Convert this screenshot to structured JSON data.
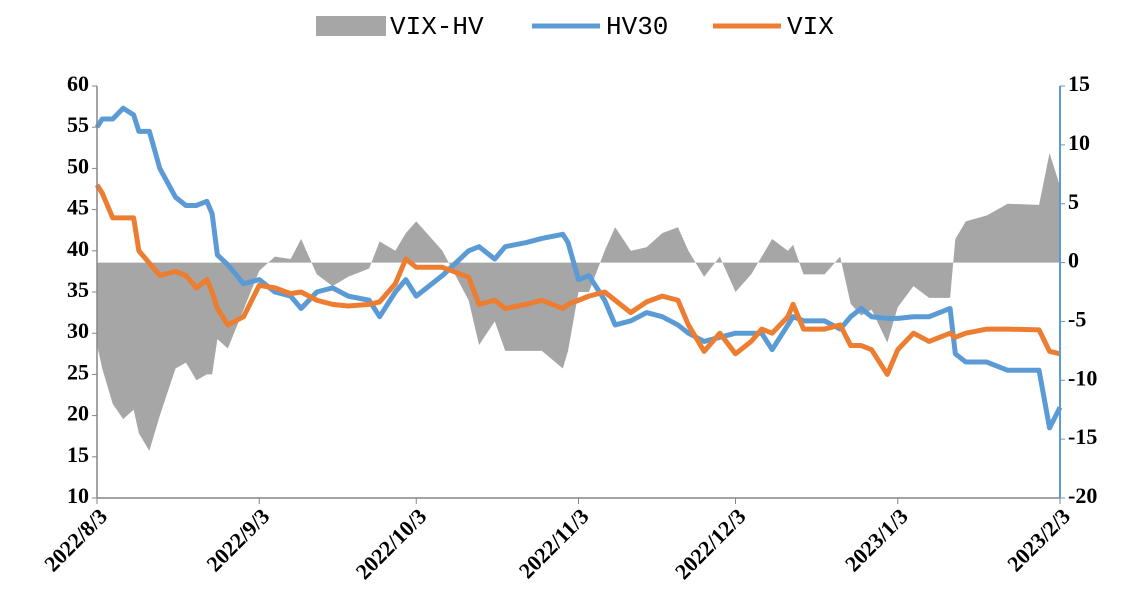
{
  "chart_data": {
    "type": "line",
    "x": [
      "2022/8/3",
      "2022/8/4",
      "2022/8/6",
      "2022/8/8",
      "2022/8/10",
      "2022/8/11",
      "2022/8/13",
      "2022/8/15",
      "2022/8/18",
      "2022/8/20",
      "2022/8/22",
      "2022/8/24",
      "2022/8/25",
      "2022/8/26",
      "2022/8/28",
      "2022/8/31",
      "2022/9/3",
      "2022/9/6",
      "2022/9/9",
      "2022/9/11",
      "2022/9/14",
      "2022/9/17",
      "2022/9/20",
      "2022/9/24",
      "2022/9/26",
      "2022/9/29",
      "2022/10/1",
      "2022/10/3",
      "2022/10/8",
      "2022/10/13",
      "2022/10/15",
      "2022/10/18",
      "2022/10/20",
      "2022/10/24",
      "2022/10/27",
      "2022/10/31",
      "2022/11/1",
      "2022/11/3",
      "2022/11/5",
      "2022/11/8",
      "2022/11/10",
      "2022/11/13",
      "2022/11/16",
      "2022/11/19",
      "2022/11/22",
      "2022/11/24",
      "2022/11/27",
      "2022/11/30",
      "2022/12/3",
      "2022/12/6",
      "2022/12/8",
      "2022/12/10",
      "2022/12/13",
      "2022/12/14",
      "2022/12/16",
      "2022/12/20",
      "2022/12/23",
      "2022/12/25",
      "2022/12/27",
      "2022/12/29",
      "2023/1/1",
      "2023/1/3",
      "2023/1/6",
      "2023/1/9",
      "2023/1/13",
      "2023/1/14",
      "2023/1/16",
      "2023/1/20",
      "2023/1/24",
      "2023/1/30",
      "2023/2/1",
      "2023/2/3"
    ],
    "series": [
      {
        "name": "VIX-HV",
        "type": "area",
        "axis": "y2",
        "color": "#a6a6a6",
        "values": [
          -7,
          -9,
          -12,
          -13.3,
          -12.5,
          -14.5,
          -16,
          -13,
          -9,
          -8.5,
          -10,
          -9.5,
          -9.5,
          -6.5,
          -7.3,
          -4,
          -0.7,
          0.5,
          0.3,
          2,
          -1,
          -2,
          -1.2,
          -0.5,
          1.8,
          1,
          2.5,
          3.5,
          1,
          -3.2,
          -7,
          -5,
          -7.5,
          -7.5,
          -7.5,
          -9,
          -7.5,
          -2.5,
          -2.5,
          1,
          3,
          1,
          1.3,
          2.5,
          3,
          1,
          -1.2,
          0.5,
          -2.5,
          -1,
          0.5,
          2,
          1,
          1.5,
          -1,
          -1,
          0.5,
          -3.5,
          -4.5,
          -4,
          -6.8,
          -3.8,
          -2,
          -3,
          -3,
          2,
          3.5,
          4,
          5,
          4.9,
          9.3,
          6.5
        ]
      },
      {
        "name": "HV30",
        "type": "line",
        "color": "#5b9bd5",
        "values": [
          55,
          56,
          56,
          57.3,
          56.5,
          54.5,
          54.5,
          50,
          46.5,
          45.5,
          45.5,
          46,
          44.5,
          39.5,
          38.3,
          36,
          36.5,
          35,
          34.5,
          33,
          35,
          35.5,
          34.5,
          34,
          32,
          35,
          36.5,
          34.5,
          37,
          40,
          40.5,
          39,
          40.5,
          41,
          41.5,
          42,
          41,
          36.5,
          37,
          34,
          31,
          31.5,
          32.5,
          32,
          31,
          30,
          29,
          29.5,
          30,
          30,
          30,
          28,
          31,
          32,
          31.5,
          31.5,
          30.5,
          32,
          33,
          32,
          31.8,
          31.8,
          32,
          32,
          33,
          27.5,
          26.5,
          26.5,
          25.5,
          25.5,
          18.5,
          21
        ]
      },
      {
        "name": "VIX",
        "type": "line",
        "color": "#ed7d31",
        "values": [
          48,
          47,
          44,
          44,
          44,
          40,
          38.5,
          37,
          37.5,
          37,
          35.5,
          36.5,
          35,
          33,
          31,
          32,
          35.8,
          35.5,
          34.8,
          35,
          34,
          33.5,
          33.3,
          33.5,
          33.8,
          36,
          39,
          38,
          38,
          36.8,
          33.5,
          34,
          33,
          33.5,
          34,
          33,
          33.5,
          34,
          34.5,
          35,
          34,
          32.5,
          33.8,
          34.5,
          34,
          31,
          27.8,
          30,
          27.5,
          29,
          30.5,
          30,
          32,
          33.5,
          30.5,
          30.5,
          31,
          28.5,
          28.5,
          28,
          25,
          28,
          30,
          29,
          30,
          29.5,
          30,
          30.5,
          30.5,
          30.4,
          27.8,
          27.5
        ]
      }
    ],
    "xlim": [
      "2022/8/3",
      "2023/2/3"
    ],
    "xticks": [
      "2022/8/3",
      "2022/9/3",
      "2022/10/3",
      "2022/11/3",
      "2022/12/3",
      "2023/1/3",
      "2023/2/3"
    ],
    "ylim": [
      10,
      60
    ],
    "yticks": [
      10,
      15,
      20,
      25,
      30,
      35,
      40,
      45,
      50,
      55,
      60
    ],
    "y2lim": [
      -20,
      15
    ],
    "y2ticks": [
      -20,
      -15,
      -10,
      -5,
      0,
      5,
      10,
      15
    ],
    "legend": "top"
  }
}
